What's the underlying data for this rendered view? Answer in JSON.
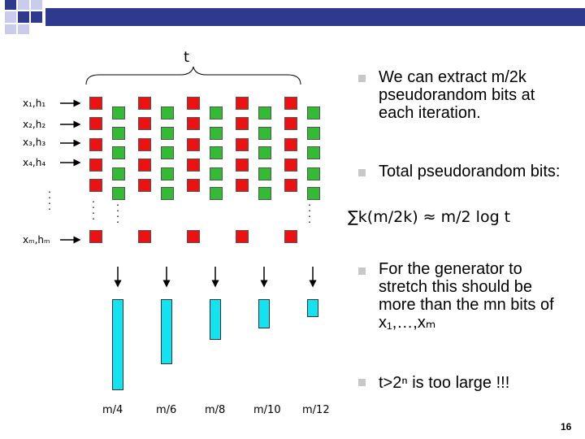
{
  "top_symbol": "t",
  "row_labels": [
    "x₁,h₁",
    "x₂,h₂",
    "x₃,h₃",
    "x₄,h₄",
    "xₘ,hₘ"
  ],
  "vertical_ellipsis": "⋮",
  "bottom_labels": [
    "m/4",
    "m/6",
    "m/8",
    "m/10",
    "m/12"
  ],
  "column_heights": [
    "m/4",
    "m/6",
    "m/8",
    "m/10",
    "m/12"
  ],
  "bullets": [
    {
      "text": "We can extract m/2k pseudorandom bits at each iteration."
    },
    {
      "text": "Total pseudorandom bits:",
      "formula": "∑k(m/2k) ≈ m/2 log t"
    },
    {
      "text": "For the generator to stretch this should be more than the mn bits of x₁,…,xₘ"
    },
    {
      "text": "t>2ⁿ is too large !!!"
    }
  ],
  "page_number": "16",
  "colors": {
    "topbar": "#2f3a8f",
    "red": "#ee1111",
    "green": "#33bb33",
    "cyan": "#11e3f0",
    "bullet": "#c8c8c8"
  }
}
